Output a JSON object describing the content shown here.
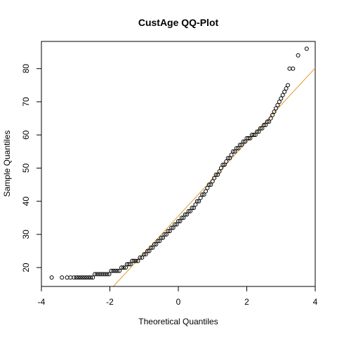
{
  "chart_data": {
    "type": "scatter",
    "title": "CustAge QQ-Plot",
    "xlabel": "Theoretical Quantiles",
    "ylabel": "Sample Quantiles",
    "xlim": [
      -4,
      4
    ],
    "ylim": [
      14.3,
      88.2
    ],
    "x_ticks": [
      -4,
      -2,
      0,
      2,
      4
    ],
    "y_ticks": [
      20,
      30,
      40,
      50,
      60,
      70,
      80
    ],
    "grid": false,
    "series": [
      {
        "points": [
          [
            -3.7,
            17
          ],
          [
            -3.4,
            17
          ],
          [
            -3.25,
            17
          ],
          [
            -3.15,
            17
          ],
          [
            -3.05,
            17
          ],
          [
            -2.98,
            17
          ],
          [
            -2.92,
            17
          ],
          [
            -2.86,
            17
          ],
          [
            -2.8,
            17
          ],
          [
            -2.74,
            17
          ],
          [
            -2.68,
            17
          ],
          [
            -2.62,
            17
          ],
          [
            -2.56,
            17
          ],
          [
            -2.5,
            17
          ],
          [
            -2.44,
            18
          ],
          [
            -2.38,
            18
          ],
          [
            -2.32,
            18
          ],
          [
            -2.26,
            18
          ],
          [
            -2.2,
            18
          ],
          [
            -2.14,
            18
          ],
          [
            -2.08,
            18
          ],
          [
            -2.02,
            18
          ],
          [
            -1.96,
            19
          ],
          [
            -1.9,
            19
          ],
          [
            -1.84,
            19
          ],
          [
            -1.78,
            19
          ],
          [
            -1.72,
            19
          ],
          [
            -1.66,
            20
          ],
          [
            -1.6,
            20
          ],
          [
            -1.54,
            20
          ],
          [
            -1.5,
            21
          ],
          [
            -1.45,
            21
          ],
          [
            -1.4,
            21
          ],
          [
            -1.35,
            22
          ],
          [
            -1.3,
            22
          ],
          [
            -1.24,
            22
          ],
          [
            -1.18,
            22
          ],
          [
            -1.12,
            23
          ],
          [
            -1.06,
            23
          ],
          [
            -1.0,
            24
          ],
          [
            -0.95,
            24
          ],
          [
            -0.9,
            25
          ],
          [
            -0.85,
            25
          ],
          [
            -0.8,
            26
          ],
          [
            -0.75,
            26
          ],
          [
            -0.7,
            27
          ],
          [
            -0.65,
            27
          ],
          [
            -0.6,
            28
          ],
          [
            -0.55,
            28
          ],
          [
            -0.5,
            29
          ],
          [
            -0.45,
            29
          ],
          [
            -0.4,
            30
          ],
          [
            -0.35,
            30
          ],
          [
            -0.3,
            31
          ],
          [
            -0.25,
            31
          ],
          [
            -0.2,
            32
          ],
          [
            -0.15,
            32
          ],
          [
            -0.1,
            33
          ],
          [
            -0.05,
            33
          ],
          [
            0.0,
            34
          ],
          [
            0.05,
            34
          ],
          [
            0.1,
            35
          ],
          [
            0.15,
            35
          ],
          [
            0.2,
            36
          ],
          [
            0.25,
            36
          ],
          [
            0.3,
            37
          ],
          [
            0.35,
            37
          ],
          [
            0.4,
            38
          ],
          [
            0.45,
            38
          ],
          [
            0.5,
            39
          ],
          [
            0.55,
            40
          ],
          [
            0.6,
            40
          ],
          [
            0.65,
            41
          ],
          [
            0.7,
            42
          ],
          [
            0.75,
            42
          ],
          [
            0.8,
            43
          ],
          [
            0.85,
            44
          ],
          [
            0.9,
            45
          ],
          [
            0.95,
            45
          ],
          [
            1.0,
            46
          ],
          [
            1.05,
            47
          ],
          [
            1.1,
            48
          ],
          [
            1.15,
            48
          ],
          [
            1.2,
            49
          ],
          [
            1.25,
            50
          ],
          [
            1.3,
            51
          ],
          [
            1.35,
            51
          ],
          [
            1.4,
            52
          ],
          [
            1.45,
            53
          ],
          [
            1.5,
            53
          ],
          [
            1.55,
            54
          ],
          [
            1.6,
            55
          ],
          [
            1.65,
            55
          ],
          [
            1.7,
            56
          ],
          [
            1.75,
            56
          ],
          [
            1.8,
            57
          ],
          [
            1.85,
            57
          ],
          [
            1.9,
            58
          ],
          [
            1.95,
            58
          ],
          [
            2.0,
            59
          ],
          [
            2.05,
            59
          ],
          [
            2.1,
            59
          ],
          [
            2.15,
            60
          ],
          [
            2.2,
            60
          ],
          [
            2.25,
            60
          ],
          [
            2.3,
            61
          ],
          [
            2.35,
            61
          ],
          [
            2.4,
            62
          ],
          [
            2.45,
            62
          ],
          [
            2.5,
            63
          ],
          [
            2.55,
            63
          ],
          [
            2.6,
            64
          ],
          [
            2.65,
            64
          ],
          [
            2.7,
            65
          ],
          [
            2.75,
            66
          ],
          [
            2.8,
            67
          ],
          [
            2.85,
            68
          ],
          [
            2.9,
            69
          ],
          [
            2.95,
            70
          ],
          [
            3.0,
            71
          ],
          [
            3.05,
            72
          ],
          [
            3.1,
            73
          ],
          [
            3.15,
            74
          ],
          [
            3.2,
            75
          ],
          [
            3.25,
            80
          ],
          [
            3.35,
            80
          ],
          [
            3.5,
            84
          ],
          [
            3.75,
            86
          ]
        ]
      }
    ],
    "reference_line": {
      "from": [
        -1.9,
        14.3
      ],
      "to": [
        4.0,
        80.2
      ],
      "color": "#e09a2a"
    },
    "marker": "open-circle",
    "point_color": "#000000"
  }
}
